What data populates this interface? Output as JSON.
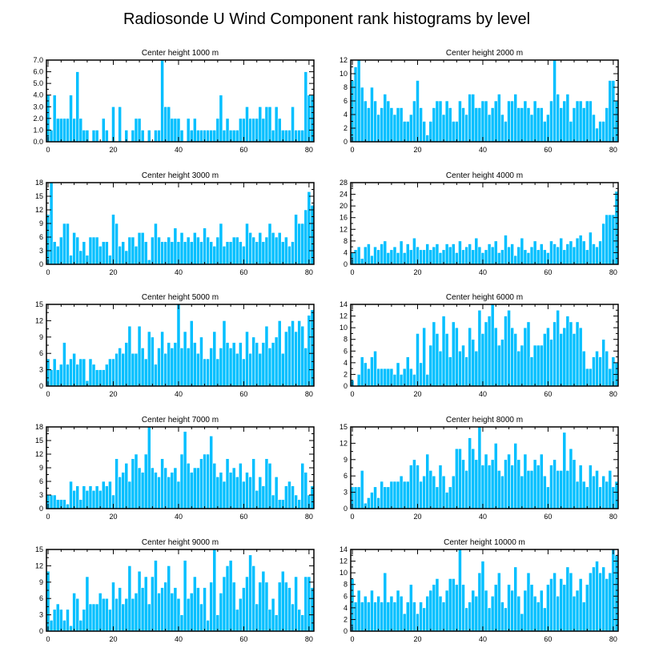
{
  "figure": {
    "title": "Radiosonde U Wind Component rank histograms by level"
  },
  "colors": {
    "bar": "#00BFFF",
    "axis": "#000000",
    "background": "#ffffff"
  },
  "chart_data": [
    {
      "type": "bar",
      "title": "Center height 1000 m",
      "x_start": 0,
      "xlim": [
        -0.5,
        81.5
      ],
      "x_ticks": [
        0,
        20,
        40,
        60,
        80
      ],
      "ylim": [
        0,
        7
      ],
      "y_ticks": [
        0,
        1,
        2,
        3,
        4,
        5,
        6,
        7
      ],
      "y_tick_labels": [
        "0.0",
        "1.0",
        "2.0",
        "3.0",
        "4.0",
        "5.0",
        "6.0",
        "7.0"
      ],
      "values": [
        4,
        1,
        4,
        2,
        2,
        2,
        2,
        4,
        2,
        6,
        2,
        1,
        1,
        0,
        1,
        1,
        0,
        2,
        1,
        0,
        3,
        0,
        3,
        0,
        1,
        0,
        1,
        2,
        2,
        1,
        0,
        1,
        0,
        1,
        1,
        7,
        3,
        3,
        2,
        2,
        2,
        1,
        0,
        2,
        1,
        2,
        1,
        1,
        1,
        1,
        1,
        1,
        2,
        4,
        1,
        2,
        1,
        1,
        1,
        2,
        2,
        3,
        2,
        2,
        2,
        3,
        2,
        3,
        3,
        1,
        3,
        2,
        1,
        1,
        1,
        3,
        1,
        1,
        1,
        6,
        4,
        4
      ]
    },
    {
      "type": "bar",
      "title": "Center height 2000 m",
      "x_start": 0,
      "xlim": [
        -0.5,
        81.5
      ],
      "x_ticks": [
        0,
        20,
        40,
        60,
        80
      ],
      "ylim": [
        0,
        12
      ],
      "y_ticks": [
        0,
        2,
        4,
        6,
        8,
        10,
        12
      ],
      "y_tick_labels": [
        "0",
        "2",
        "4",
        "6",
        "8",
        "10",
        "12"
      ],
      "values": [
        9,
        11,
        12,
        8,
        6,
        5,
        8,
        6,
        4,
        5,
        7,
        6,
        5,
        4,
        5,
        5,
        3,
        3,
        4,
        6,
        9,
        5,
        3,
        1,
        3,
        5,
        6,
        6,
        4,
        6,
        5,
        3,
        3,
        6,
        5,
        4,
        7,
        7,
        5,
        5,
        6,
        6,
        4,
        5,
        6,
        7,
        4,
        3,
        6,
        6,
        7,
        5,
        5,
        6,
        5,
        4,
        6,
        5,
        5,
        3,
        4,
        6,
        12,
        7,
        5,
        6,
        7,
        3,
        5,
        6,
        6,
        5,
        6,
        6,
        4,
        2,
        3,
        3,
        5,
        9,
        9,
        6
      ]
    },
    {
      "type": "bar",
      "title": "Center height 3000 m",
      "x_start": 0,
      "xlim": [
        -0.5,
        81.5
      ],
      "x_ticks": [
        0,
        20,
        40,
        60,
        80
      ],
      "ylim": [
        0,
        18
      ],
      "y_ticks": [
        0,
        3,
        6,
        9,
        12,
        15,
        18
      ],
      "y_tick_labels": [
        "0",
        "3",
        "6",
        "9",
        "12",
        "15",
        "18"
      ],
      "values": [
        11,
        18,
        5,
        4,
        6,
        9,
        9,
        2,
        7,
        6,
        3,
        5,
        2,
        6,
        6,
        6,
        4,
        5,
        5,
        2,
        11,
        9,
        4,
        5,
        3,
        6,
        6,
        4,
        7,
        7,
        5,
        1,
        6,
        9,
        6,
        5,
        5,
        6,
        5,
        8,
        5,
        7,
        5,
        6,
        5,
        7,
        6,
        5,
        8,
        6,
        5,
        4,
        6,
        9,
        4,
        5,
        5,
        6,
        6,
        5,
        4,
        9,
        7,
        6,
        5,
        7,
        5,
        6,
        9,
        7,
        6,
        7,
        5,
        6,
        4,
        5,
        11,
        9,
        9,
        12,
        16,
        13
      ]
    },
    {
      "type": "bar",
      "title": "Center height 4000 m",
      "x_start": 0,
      "xlim": [
        -0.5,
        81.5
      ],
      "x_ticks": [
        0,
        20,
        40,
        60,
        80
      ],
      "ylim": [
        0,
        28
      ],
      "y_ticks": [
        0,
        4,
        8,
        12,
        16,
        20,
        24,
        28
      ],
      "y_tick_labels": [
        "0",
        "4",
        "8",
        "12",
        "16",
        "20",
        "24",
        "28"
      ],
      "values": [
        4,
        5,
        6,
        2,
        6,
        7,
        3,
        6,
        5,
        7,
        8,
        4,
        5,
        6,
        4,
        8,
        4,
        7,
        5,
        9,
        6,
        5,
        5,
        7,
        5,
        6,
        7,
        4,
        5,
        7,
        6,
        7,
        4,
        8,
        5,
        6,
        7,
        5,
        9,
        6,
        4,
        5,
        7,
        6,
        8,
        4,
        5,
        10,
        6,
        7,
        3,
        6,
        9,
        5,
        4,
        6,
        8,
        5,
        7,
        5,
        4,
        8,
        7,
        6,
        9,
        5,
        7,
        8,
        6,
        9,
        10,
        8,
        5,
        11,
        7,
        6,
        8,
        14,
        17,
        17,
        17,
        25
      ]
    },
    {
      "type": "bar",
      "title": "Center height 5000 m",
      "x_start": 0,
      "xlim": [
        -0.5,
        81.5
      ],
      "x_ticks": [
        0,
        20,
        40,
        60,
        80
      ],
      "ylim": [
        0,
        15
      ],
      "y_ticks": [
        0,
        3,
        6,
        9,
        12,
        15
      ],
      "y_tick_labels": [
        "0",
        "3",
        "6",
        "9",
        "12",
        "15"
      ],
      "values": [
        5,
        3,
        5,
        3,
        4,
        8,
        4,
        5,
        6,
        4,
        5,
        5,
        1,
        5,
        4,
        3,
        3,
        3,
        4,
        5,
        5,
        6,
        7,
        6,
        8,
        11,
        6,
        6,
        11,
        7,
        5,
        10,
        9,
        4,
        7,
        10,
        6,
        8,
        7,
        8,
        15,
        7,
        10,
        7,
        12,
        8,
        6,
        9,
        5,
        5,
        7,
        10,
        5,
        7,
        12,
        8,
        7,
        8,
        6,
        8,
        5,
        10,
        6,
        9,
        8,
        6,
        8,
        11,
        7,
        8,
        9,
        12,
        6,
        10,
        11,
        12,
        10,
        12,
        11,
        7,
        13,
        14
      ]
    },
    {
      "type": "bar",
      "title": "Center height 6000 m",
      "x_start": 0,
      "xlim": [
        -0.5,
        81.5
      ],
      "x_ticks": [
        0,
        20,
        40,
        60,
        80
      ],
      "ylim": [
        0,
        14
      ],
      "y_ticks": [
        0,
        2,
        4,
        6,
        8,
        10,
        12,
        14
      ],
      "y_tick_labels": [
        "0",
        "2",
        "4",
        "6",
        "8",
        "10",
        "12",
        "14"
      ],
      "values": [
        1,
        0,
        2,
        5,
        4,
        3,
        5,
        6,
        3,
        3,
        3,
        3,
        3,
        2,
        4,
        2,
        3,
        5,
        3,
        2,
        9,
        4,
        10,
        2,
        7,
        11,
        9,
        6,
        12,
        9,
        5,
        11,
        10,
        6,
        7,
        5,
        10,
        8,
        6,
        13,
        9,
        11,
        12,
        14,
        10,
        7,
        8,
        12,
        13,
        10,
        9,
        6,
        7,
        10,
        11,
        5,
        7,
        7,
        7,
        9,
        10,
        8,
        11,
        13,
        9,
        10,
        12,
        11,
        9,
        11,
        10,
        6,
        3,
        3,
        5,
        6,
        5,
        8,
        6,
        3,
        5,
        4
      ]
    },
    {
      "type": "bar",
      "title": "Center height 7000 m",
      "x_start": 0,
      "xlim": [
        -0.5,
        81.5
      ],
      "x_ticks": [
        0,
        20,
        40,
        60,
        80
      ],
      "ylim": [
        0,
        18
      ],
      "y_ticks": [
        0,
        3,
        6,
        9,
        12,
        15,
        18
      ],
      "y_tick_labels": [
        "0",
        "3",
        "6",
        "9",
        "12",
        "15",
        "18"
      ],
      "values": [
        3,
        3,
        3,
        2,
        2,
        2,
        1,
        6,
        4,
        5,
        2,
        5,
        4,
        5,
        4,
        5,
        4,
        6,
        5,
        6,
        3,
        11,
        7,
        8,
        10,
        6,
        11,
        12,
        9,
        8,
        12,
        18,
        9,
        8,
        7,
        11,
        9,
        7,
        8,
        9,
        6,
        12,
        17,
        10,
        8,
        9,
        9,
        11,
        12,
        12,
        16,
        10,
        7,
        8,
        6,
        11,
        8,
        9,
        7,
        10,
        6,
        8,
        7,
        11,
        4,
        7,
        5,
        11,
        10,
        3,
        7,
        2,
        2,
        5,
        6,
        5,
        3,
        2,
        10,
        8,
        3,
        5
      ]
    },
    {
      "type": "bar",
      "title": "Center height 8000 m",
      "x_start": 0,
      "xlim": [
        -0.5,
        81.5
      ],
      "x_ticks": [
        0,
        20,
        40,
        60,
        80
      ],
      "ylim": [
        0,
        15
      ],
      "y_ticks": [
        0,
        3,
        6,
        9,
        12,
        15
      ],
      "y_tick_labels": [
        "0",
        "3",
        "6",
        "9",
        "12",
        "15"
      ],
      "values": [
        4,
        4,
        4,
        7,
        1,
        2,
        3,
        4,
        2,
        5,
        4,
        4,
        5,
        5,
        5,
        6,
        5,
        5,
        8,
        9,
        8,
        5,
        6,
        10,
        7,
        6,
        4,
        8,
        6,
        3,
        4,
        6,
        11,
        11,
        9,
        7,
        13,
        11,
        9,
        15,
        8,
        10,
        8,
        9,
        12,
        7,
        6,
        9,
        10,
        8,
        12,
        9,
        6,
        10,
        7,
        7,
        9,
        8,
        10,
        6,
        4,
        8,
        9,
        7,
        7,
        14,
        7,
        11,
        9,
        5,
        8,
        5,
        4,
        8,
        6,
        7,
        4,
        6,
        5,
        7,
        4,
        5
      ]
    },
    {
      "type": "bar",
      "title": "Center height 9000 m",
      "x_start": 0,
      "xlim": [
        -0.5,
        81.5
      ],
      "x_ticks": [
        0,
        20,
        40,
        60,
        80
      ],
      "ylim": [
        0,
        15
      ],
      "y_ticks": [
        0,
        3,
        6,
        9,
        12,
        15
      ],
      "y_tick_labels": [
        "0",
        "3",
        "6",
        "9",
        "12",
        "15"
      ],
      "values": [
        11,
        2,
        4,
        5,
        4,
        2,
        4,
        1,
        7,
        6,
        2,
        4,
        10,
        5,
        5,
        5,
        7,
        6,
        6,
        4,
        9,
        6,
        8,
        5,
        6,
        12,
        6,
        7,
        11,
        8,
        10,
        5,
        10,
        13,
        7,
        8,
        9,
        12,
        7,
        8,
        6,
        3,
        13,
        6,
        7,
        10,
        8,
        5,
        8,
        2,
        9,
        15,
        3,
        7,
        10,
        12,
        13,
        9,
        4,
        6,
        8,
        10,
        14,
        12,
        5,
        9,
        11,
        9,
        4,
        6,
        3,
        9,
        11,
        9,
        8,
        5,
        10,
        4,
        3,
        10,
        10,
        8
      ]
    },
    {
      "type": "bar",
      "title": "Center height 10000 m",
      "x_start": 0,
      "xlim": [
        -0.5,
        81.5
      ],
      "x_ticks": [
        0,
        20,
        40,
        60,
        80
      ],
      "ylim": [
        0,
        14
      ],
      "y_ticks": [
        0,
        2,
        4,
        6,
        8,
        10,
        12,
        14
      ],
      "y_tick_labels": [
        "0",
        "2",
        "4",
        "6",
        "8",
        "10",
        "12",
        "14"
      ],
      "values": [
        9,
        5,
        7,
        5,
        6,
        5,
        7,
        5,
        6,
        5,
        10,
        5,
        6,
        5,
        7,
        6,
        3,
        5,
        8,
        5,
        3,
        5,
        4,
        6,
        7,
        8,
        9,
        6,
        5,
        7,
        9,
        9,
        8,
        14,
        8,
        4,
        5,
        7,
        6,
        10,
        12,
        7,
        4,
        6,
        8,
        10,
        5,
        4,
        8,
        7,
        11,
        6,
        3,
        7,
        10,
        8,
        6,
        5,
        7,
        4,
        8,
        9,
        10,
        6,
        9,
        8,
        11,
        10,
        6,
        7,
        9,
        5,
        8,
        10,
        11,
        12,
        10,
        11,
        9,
        10,
        14,
        13
      ]
    }
  ]
}
